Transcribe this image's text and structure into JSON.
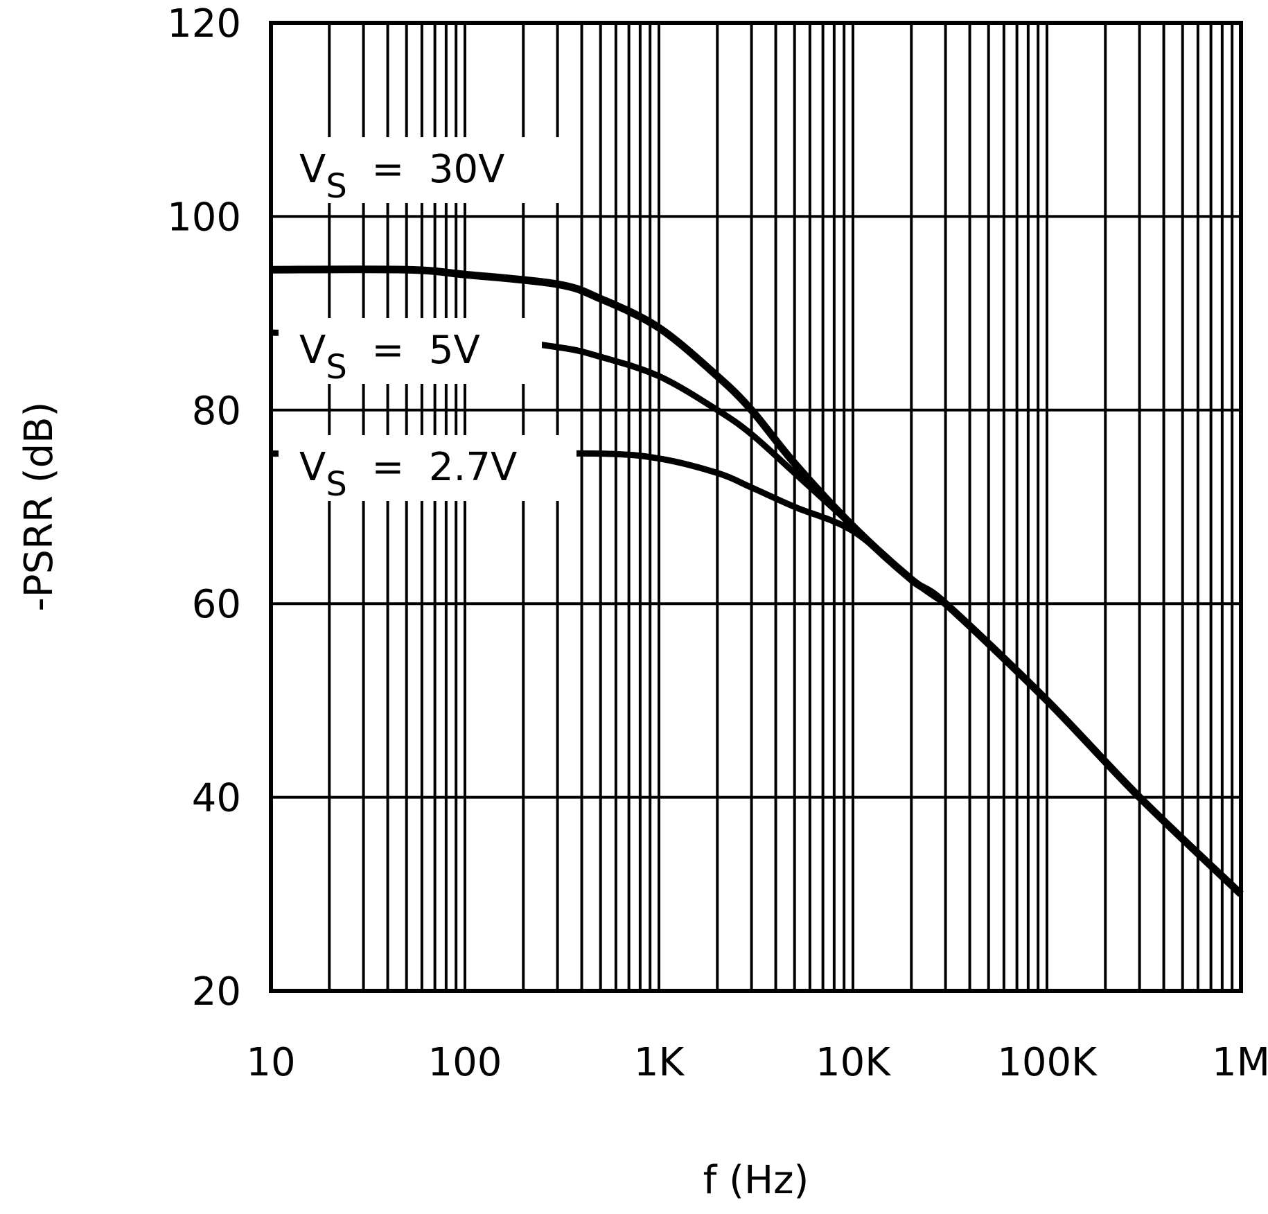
{
  "chart_data": {
    "type": "line",
    "title": "",
    "xlabel": "f (Hz)",
    "ylabel": "-PSRR (dB)",
    "x_scale": "log",
    "xlim": [
      10,
      1000000
    ],
    "ylim": [
      20,
      120
    ],
    "grid": true,
    "x_ticks": [
      {
        "v": 10,
        "label": "10"
      },
      {
        "v": 100,
        "label": "100"
      },
      {
        "v": 1000,
        "label": "1K"
      },
      {
        "v": 10000,
        "label": "10K"
      },
      {
        "v": 100000,
        "label": "100K"
      },
      {
        "v": 1000000,
        "label": "1M"
      }
    ],
    "y_ticks": [
      {
        "v": 20,
        "label": "20"
      },
      {
        "v": 40,
        "label": "40"
      },
      {
        "v": 60,
        "label": "60"
      },
      {
        "v": 80,
        "label": "80"
      },
      {
        "v": 100,
        "label": "100"
      },
      {
        "v": 120,
        "label": "120"
      }
    ],
    "series": [
      {
        "name": "VS = 30V",
        "label_main": "V",
        "label_sub": "S",
        "label_rest": " = 30V",
        "x": [
          10,
          50,
          100,
          300,
          500,
          1000,
          2000,
          3000,
          5000,
          10000,
          20000,
          30000,
          100000,
          300000,
          1000000
        ],
        "y": [
          94.5,
          94.5,
          94,
          93,
          91.5,
          88.5,
          83.5,
          80,
          74.5,
          68,
          62.5,
          60,
          50,
          40,
          30
        ]
      },
      {
        "name": "VS = 5V",
        "label_main": "V",
        "label_sub": "S",
        "label_rest": " = 5V",
        "x": [
          10,
          100,
          300,
          500,
          1000,
          2000,
          3000,
          5000,
          10000,
          20000,
          30000
        ],
        "y": [
          88,
          87.5,
          86.5,
          85.5,
          83.5,
          80,
          77.5,
          73.5,
          68,
          62.5,
          60
        ]
      },
      {
        "name": "VS = 2.7V",
        "label_main": "V",
        "label_sub": "S",
        "label_rest": " = 2.7V",
        "x": [
          10,
          100,
          500,
          1000,
          2000,
          3000,
          5000,
          10000,
          20000,
          30000
        ],
        "y": [
          75.5,
          75.5,
          75.5,
          75,
          73.5,
          72,
          70,
          67.5,
          62.5,
          60
        ]
      }
    ]
  }
}
